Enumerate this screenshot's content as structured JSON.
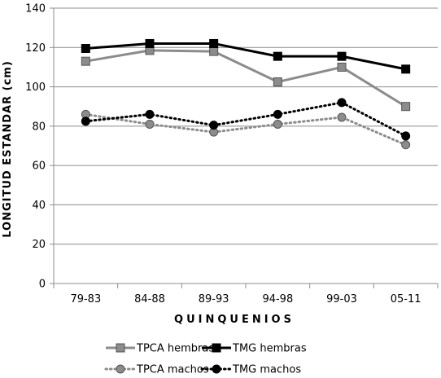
{
  "chart_data": {
    "type": "line",
    "title": "",
    "xlabel": "QUINQUENIOS",
    "ylabel": "LONGITUD ESTANDAR (cm)",
    "ylim": [
      0,
      140
    ],
    "yticks": [
      0,
      20,
      40,
      60,
      80,
      100,
      120,
      140
    ],
    "grid": true,
    "legend_position": "bottom",
    "categories": [
      "79-83",
      "84-88",
      "89-93",
      "94-98",
      "99-03",
      "05-11"
    ],
    "series": [
      {
        "name": "TPCA hembras",
        "values": [
          113,
          118.5,
          118,
          102.5,
          110,
          90
        ],
        "color": "#8c8c8c",
        "line": "solid",
        "marker": "square"
      },
      {
        "name": "TMG hembras",
        "values": [
          119.5,
          122,
          122,
          115.5,
          115.5,
          109
        ],
        "color": "#000000",
        "line": "solid",
        "marker": "square"
      },
      {
        "name": "TPCA machos",
        "values": [
          86,
          81,
          77,
          81,
          84.5,
          70.5
        ],
        "color": "#8c8c8c",
        "line": "dotted",
        "marker": "circle"
      },
      {
        "name": "TMG machos",
        "values": [
          82.5,
          86,
          80.5,
          86,
          92,
          75
        ],
        "color": "#000000",
        "line": "dotted",
        "marker": "circle"
      }
    ]
  }
}
